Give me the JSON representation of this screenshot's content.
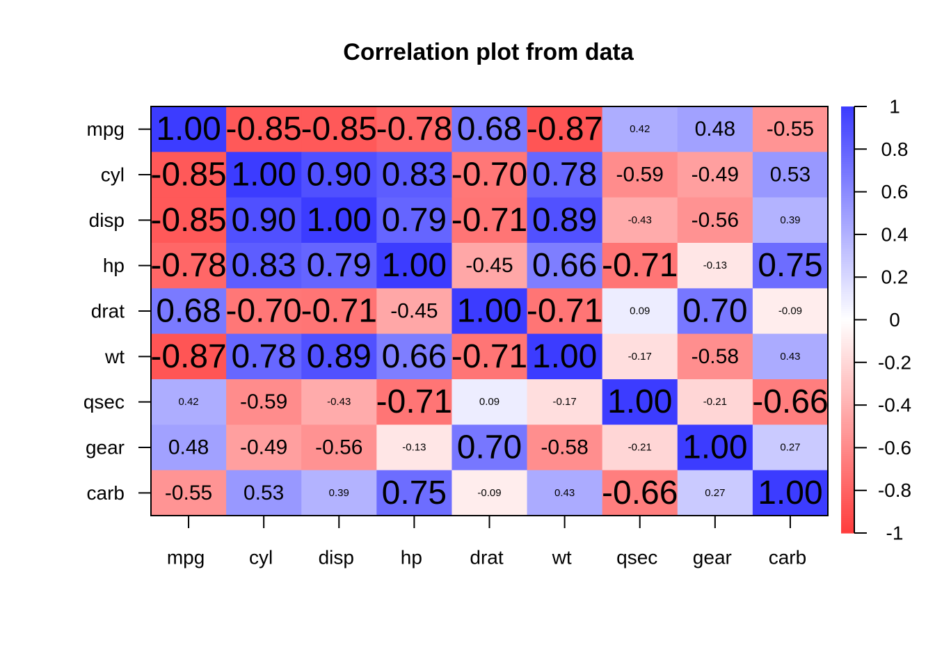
{
  "chart_data": {
    "type": "heatmap",
    "title": "Correlation plot from data",
    "xlabel": "",
    "ylabel": "",
    "variables": [
      "mpg",
      "cyl",
      "disp",
      "hp",
      "drat",
      "wt",
      "qsec",
      "gear",
      "carb"
    ],
    "matrix": [
      [
        1.0,
        -0.85,
        -0.85,
        -0.78,
        0.68,
        -0.87,
        0.42,
        0.48,
        -0.55
      ],
      [
        -0.85,
        1.0,
        0.9,
        0.83,
        -0.7,
        0.78,
        -0.59,
        -0.49,
        0.53
      ],
      [
        -0.85,
        0.9,
        1.0,
        0.79,
        -0.71,
        0.89,
        -0.43,
        -0.56,
        0.39
      ],
      [
        -0.78,
        0.83,
        0.79,
        1.0,
        -0.45,
        0.66,
        -0.71,
        -0.13,
        0.75
      ],
      [
        0.68,
        -0.7,
        -0.71,
        -0.45,
        1.0,
        -0.71,
        0.09,
        0.7,
        -0.09
      ],
      [
        -0.87,
        0.78,
        0.89,
        0.66,
        -0.71,
        1.0,
        -0.17,
        -0.58,
        0.43
      ],
      [
        0.42,
        -0.59,
        -0.43,
        -0.71,
        0.09,
        -0.17,
        1.0,
        -0.21,
        -0.66
      ],
      [
        0.48,
        -0.49,
        -0.56,
        -0.13,
        0.7,
        -0.58,
        -0.21,
        1.0,
        0.27
      ],
      [
        -0.55,
        0.53,
        0.39,
        0.75,
        -0.09,
        0.43,
        -0.66,
        0.27,
        1.0
      ]
    ],
    "value_range": [
      -1,
      1
    ],
    "colors": {
      "negative": "#ff3c3c",
      "zero": "#ffffff",
      "positive": "#3c3cff"
    },
    "legend": {
      "placement": "right",
      "ticks": [
        1,
        0.8,
        0.6,
        0.4,
        0.2,
        0,
        -0.2,
        -0.4,
        -0.6,
        -0.8,
        -1
      ],
      "tick_labels": [
        "1",
        "0.8",
        "0.6",
        "0.4",
        "0.2",
        "0",
        "-0.2",
        "-0.4",
        "-0.6",
        "-0.8",
        "-1"
      ]
    },
    "grid": false
  }
}
